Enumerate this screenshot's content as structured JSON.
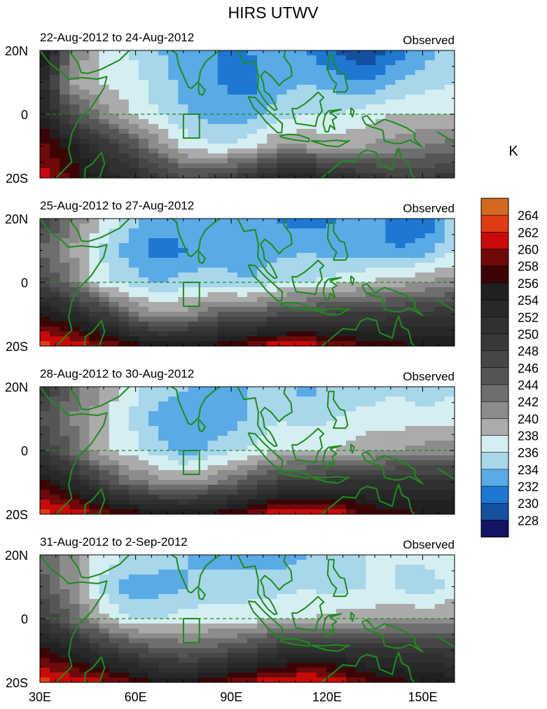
{
  "chart_data": {
    "type": "heatmap",
    "title": "HIRS UTWV",
    "unit": "K",
    "x_ticks": [
      "30E",
      "60E",
      "90E",
      "120E",
      "150E"
    ],
    "x_tick_values": [
      30,
      60,
      90,
      120,
      150
    ],
    "y_ticks": [
      "20N",
      "0",
      "20S"
    ],
    "y_tick_values": [
      20,
      0,
      -20
    ],
    "xlim": [
      30,
      160
    ],
    "ylim": [
      -20,
      20
    ],
    "colorbar": {
      "levels": [
        "264",
        "262",
        "260",
        "258",
        "256",
        "254",
        "252",
        "250",
        "248",
        "246",
        "244",
        "242",
        "240",
        "238",
        "236",
        "234",
        "232",
        "230",
        "228"
      ],
      "colors": [
        "#d2691e",
        "#e03c14",
        "#c80a0a",
        "#6e0a0a",
        "#3c0505",
        "#202020",
        "#282828",
        "#303030",
        "#383838",
        "#464646",
        "#555555",
        "#6e6e6e",
        "#8c8c8c",
        "#ababab",
        "#d5eef2",
        "#a8d6ea",
        "#5aaae6",
        "#1e78d2",
        "#14509e",
        "#141464"
      ]
    },
    "panels": [
      {
        "date_range": "22-Aug-2012 to 24-Aug-2012",
        "label": "Observed",
        "field": [
          [
            258,
            243,
            238,
            236,
            234,
            233,
            232,
            232,
            233,
            232,
            230,
            228,
            231,
            233,
            236
          ],
          [
            254,
            240,
            238,
            237,
            235,
            233,
            232,
            231,
            233,
            234,
            233,
            232,
            234,
            235,
            236
          ],
          [
            255,
            246,
            242,
            238,
            236,
            234,
            233,
            233,
            235,
            236,
            236,
            237,
            238,
            238,
            238
          ],
          [
            259,
            255,
            250,
            246,
            241,
            237,
            236,
            237,
            240,
            240,
            239,
            240,
            241,
            242,
            243
          ],
          [
            261,
            258,
            254,
            252,
            249,
            246,
            247,
            250,
            253,
            254,
            252,
            250,
            248,
            248,
            249
          ]
        ]
      },
      {
        "date_range": "25-Aug-2012 to 27-Aug-2012",
        "label": "Observed",
        "field": [
          [
            248,
            243,
            238,
            235,
            233,
            233,
            233,
            234,
            232,
            231,
            232,
            233,
            231,
            230,
            235
          ],
          [
            244,
            240,
            236,
            233,
            231,
            232,
            233,
            232,
            233,
            234,
            233,
            233,
            232,
            233,
            236
          ],
          [
            247,
            243,
            237,
            235,
            234,
            235,
            235,
            234,
            236,
            236,
            237,
            238,
            239,
            240,
            241
          ],
          [
            256,
            253,
            249,
            243,
            240,
            241,
            244,
            244,
            246,
            247,
            248,
            248,
            249,
            249,
            250
          ],
          [
            263,
            262,
            260,
            258,
            256,
            256,
            257,
            259,
            262,
            262,
            260,
            258,
            257,
            256,
            256
          ]
        ]
      },
      {
        "date_range": "28-Aug-2012 to 30-Aug-2012",
        "label": "Observed",
        "field": [
          [
            250,
            244,
            240,
            237,
            235,
            234,
            233,
            234,
            236,
            233,
            235,
            234,
            236,
            234,
            236
          ],
          [
            246,
            242,
            239,
            236,
            233,
            232,
            232,
            234,
            236,
            235,
            236,
            237,
            237,
            237,
            237
          ],
          [
            249,
            244,
            239,
            237,
            235,
            233,
            235,
            236,
            238,
            238,
            238,
            239,
            240,
            241,
            241
          ],
          [
            257,
            253,
            248,
            243,
            241,
            240,
            242,
            245,
            248,
            249,
            250,
            250,
            251,
            251,
            251
          ],
          [
            263,
            262,
            260,
            258,
            256,
            256,
            257,
            259,
            262,
            263,
            262,
            258,
            257,
            256,
            256
          ]
        ]
      },
      {
        "date_range": "31-Aug-2012 to 2-Sep-2012",
        "label": "Observed",
        "field": [
          [
            244,
            241,
            237,
            236,
            235,
            234,
            233,
            233,
            233,
            234,
            234,
            236,
            236,
            237,
            238
          ],
          [
            245,
            241,
            236,
            233,
            233,
            234,
            235,
            235,
            235,
            236,
            235,
            236,
            236,
            234,
            237
          ],
          [
            249,
            244,
            239,
            236,
            236,
            237,
            237,
            237,
            238,
            238,
            239,
            239,
            240,
            240,
            240
          ],
          [
            257,
            254,
            250,
            247,
            245,
            244,
            245,
            247,
            250,
            251,
            251,
            250,
            250,
            249,
            249
          ],
          [
            263,
            262,
            261,
            259,
            256,
            256,
            258,
            260,
            262,
            263,
            262,
            258,
            257,
            256,
            255
          ]
        ]
      }
    ]
  }
}
